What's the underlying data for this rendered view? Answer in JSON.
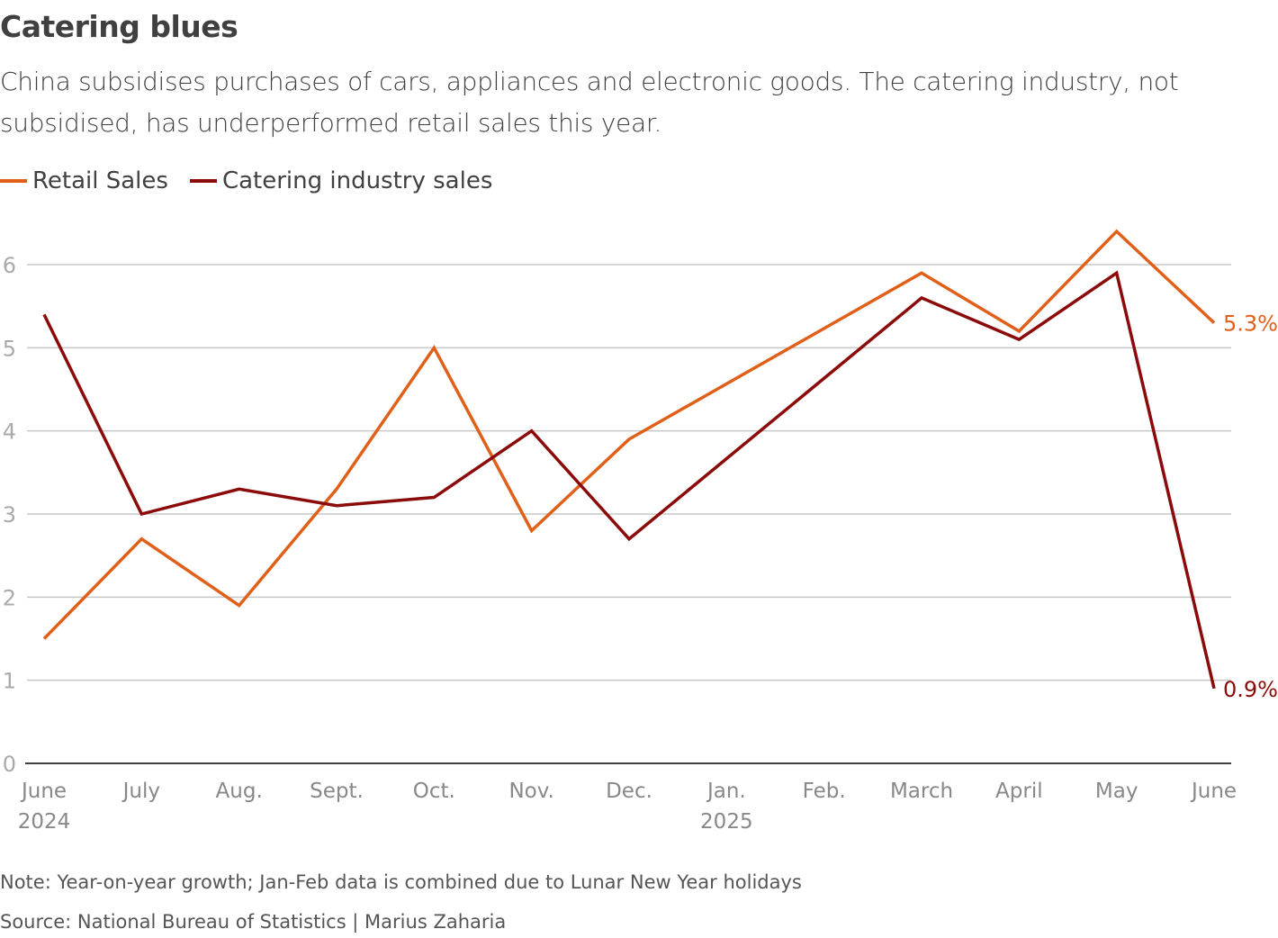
{
  "title": "Catering blues",
  "subtitle": "China subsidises purchases of cars, appliances and electronic goods. The catering industry, not subsidised, has underperformed retail sales this year.",
  "note": "Note: Year-on-year growth; Jan-Feb data is combined due to Lunar New Year holidays",
  "source": "Source: National Bureau of Statistics | Marius Zaharia",
  "chart_data": {
    "type": "line",
    "categories": [
      "June 2024",
      "July",
      "Aug.",
      "Sept.",
      "Oct.",
      "Nov.",
      "Dec.",
      "Jan. 2025",
      "Feb.",
      "March",
      "April",
      "May",
      "June"
    ],
    "tick_labels": [
      [
        "June",
        "2024"
      ],
      [
        "July"
      ],
      [
        "Aug."
      ],
      [
        "Sept."
      ],
      [
        "Oct."
      ],
      [
        "Nov."
      ],
      [
        "Dec."
      ],
      [
        "Jan.",
        "2025"
      ],
      [
        "Feb."
      ],
      [
        "March"
      ],
      [
        "April"
      ],
      [
        "May"
      ],
      [
        "June"
      ]
    ],
    "y_ticks": [
      0,
      1,
      2,
      3,
      4,
      5,
      6
    ],
    "ylim": [
      0,
      6.6
    ],
    "grid": true,
    "legend_position": "top-left",
    "series": [
      {
        "name": "Retail Sales",
        "color": "#e0601a",
        "values": [
          1.5,
          2.7,
          1.9,
          3.3,
          5.0,
          2.8,
          3.9,
          null,
          null,
          5.9,
          5.2,
          6.4,
          5.3
        ],
        "end_label": "5.3%"
      },
      {
        "name": "Catering industry sales",
        "color": "#8b0a0a",
        "values": [
          5.4,
          3.0,
          3.3,
          3.1,
          3.2,
          4.0,
          2.7,
          null,
          null,
          5.6,
          5.1,
          5.9,
          0.9
        ],
        "end_label": "0.9%"
      }
    ]
  }
}
